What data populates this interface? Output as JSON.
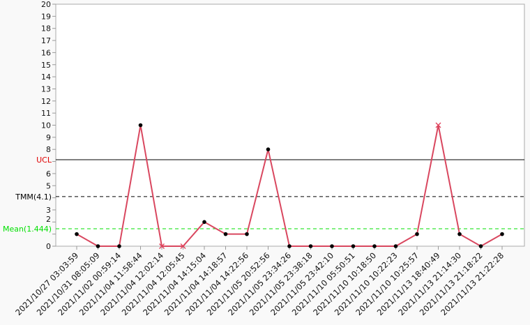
{
  "chart_data": {
    "type": "line",
    "x": [
      "2021/10/27 03:03:59",
      "2021/10/31 08:05:09",
      "2021/11/02 00:59:14",
      "2021/11/04 11:58:44",
      "2021/11/04 12:02:14",
      "2021/11/04 12:05:45",
      "2021/11/04 14:15:04",
      "2021/11/04 14:18:57",
      "2021/11/04 14:22:56",
      "2021/11/05 20:52:56",
      "2021/11/05 23:34:26",
      "2021/11/05 23:38:18",
      "2021/11/05 23:42:10",
      "2021/11/10 05:50:51",
      "2021/11/10 10:18:50",
      "2021/11/10 10:22:23",
      "2021/11/10 10:25:57",
      "2021/11/13 18:40:49",
      "2021/11/13 21:14:30",
      "2021/11/13 21:18:22",
      "2021/11/13 21:22:28"
    ],
    "values": [
      1,
      0,
      0,
      10,
      0,
      0,
      2,
      1,
      1,
      8,
      0,
      0,
      0,
      0,
      0,
      0,
      1,
      10,
      1,
      0,
      1
    ],
    "flagged": [
      false,
      false,
      false,
      false,
      true,
      true,
      false,
      false,
      false,
      false,
      false,
      false,
      false,
      false,
      false,
      false,
      false,
      true,
      false,
      false,
      false
    ],
    "ylim": [
      0,
      20
    ],
    "yticks": [
      0,
      2,
      3,
      5,
      6,
      8,
      9,
      10,
      11,
      12,
      13,
      14,
      15,
      16,
      17,
      18,
      19,
      20
    ],
    "grid": false,
    "reference_lines": [
      {
        "label": "UCL",
        "value": 7.15,
        "color": "#e00000",
        "style": "solid",
        "line_color": "#000000"
      },
      {
        "label": "TMM(4.1)",
        "value": 4.1,
        "color": "#000000",
        "style": "dashed",
        "line_color": "#000000"
      },
      {
        "label": "Mean(1.444)",
        "value": 1.444,
        "color": "#00e000",
        "style": "dashed",
        "line_color": "#00e000"
      }
    ],
    "series_color": "#d9475f",
    "marker_color": "#000000",
    "flag_color": "#e0405a"
  }
}
